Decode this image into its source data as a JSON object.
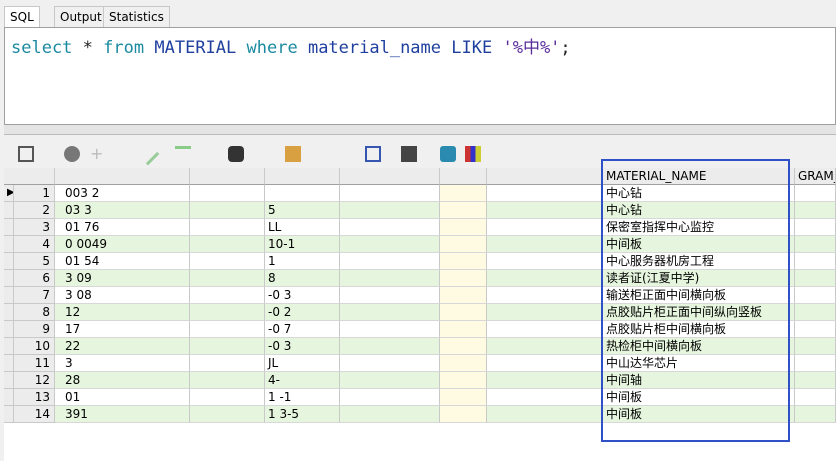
{
  "tabs": [
    "SQL",
    "Output",
    "Statistics"
  ],
  "editor": {
    "tokens": [
      {
        "text": "select",
        "kind": "kw"
      },
      {
        "text": "*",
        "kind": "op"
      },
      {
        "text": "from",
        "kind": "kw"
      },
      {
        "text": "MATERIAL",
        "kind": "id"
      },
      {
        "text": "where",
        "kind": "kw"
      },
      {
        "text": "material_name",
        "kind": "id"
      },
      {
        "text": "LIKE",
        "kind": "id"
      },
      {
        "text": "'%中%'",
        "kind": "str"
      },
      {
        "text": ";",
        "kind": "op"
      }
    ]
  },
  "grid": {
    "columns": [
      "MATERIAL_NAME",
      "GRAM_"
    ],
    "rows": [
      {
        "no": 1,
        "a": "003 2",
        "c": "",
        "name": "中心钻"
      },
      {
        "no": 2,
        "a": "03 3",
        "c": "5",
        "name": "中心钻"
      },
      {
        "no": 3,
        "a": "01 76",
        "c": "LL",
        "name": "保密室指挥中心监控"
      },
      {
        "no": 4,
        "a": "0 0049",
        "c": "10-1",
        "name": "中间板"
      },
      {
        "no": 5,
        "a": "01 54",
        "c": "1",
        "name": "中心服务器机房工程"
      },
      {
        "no": 6,
        "a": "3 09",
        "c": "8",
        "name": "读者证(江夏中学)"
      },
      {
        "no": 7,
        "a": "3 08",
        "c": "-0 3",
        "name": "输送柜正面中间横向板"
      },
      {
        "no": 8,
        "a": "12",
        "c": "-0 2",
        "name": "点胶贴片柜正面中间纵向竖板"
      },
      {
        "no": 9,
        "a": "17",
        "c": "-0 7",
        "name": "点胶贴片柜中间横向板"
      },
      {
        "no": 10,
        "a": "22",
        "c": "-0 3",
        "name": "热检柜中间横向板"
      },
      {
        "no": 11,
        "a": "3",
        "c": "JL",
        "name": "中山达华芯片"
      },
      {
        "no": 12,
        "a": "28",
        "c": "4-",
        "name": "中间轴"
      },
      {
        "no": 13,
        "a": "01",
        "c": "1 -1",
        "name": "中间板"
      },
      {
        "no": 14,
        "a": "391",
        "c": "1 3-5",
        "name": "中间板"
      }
    ]
  }
}
